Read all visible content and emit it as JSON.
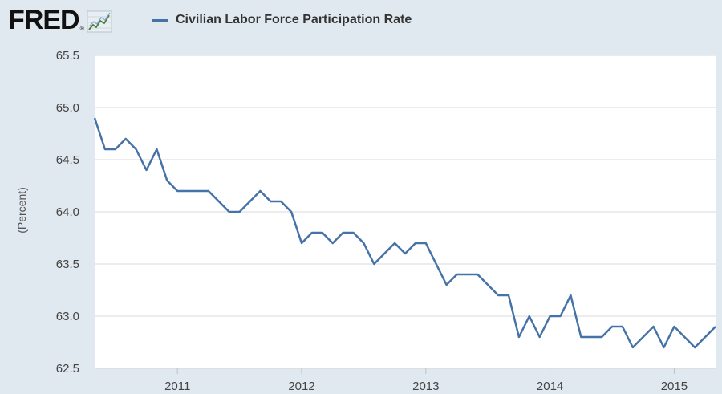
{
  "brand": {
    "name": "FRED",
    "registered": "®"
  },
  "chart_data": {
    "type": "line",
    "title": "",
    "xlabel": "",
    "ylabel": "(Percent)",
    "ylim": [
      62.5,
      65.5
    ],
    "yticks": [
      "62.5",
      "63.0",
      "63.5",
      "64.0",
      "64.5",
      "65.0",
      "65.5"
    ],
    "xticks": [
      "2011",
      "2012",
      "2013",
      "2014",
      "2015"
    ],
    "x_start": "2010-05",
    "x_end": "2015-05",
    "grid": true,
    "legend_position": "top",
    "series": [
      {
        "name": "Civilian Labor Force Participation Rate",
        "color": "#4572a7",
        "x": [
          "2010-05",
          "2010-06",
          "2010-07",
          "2010-08",
          "2010-09",
          "2010-10",
          "2010-11",
          "2010-12",
          "2011-01",
          "2011-02",
          "2011-03",
          "2011-04",
          "2011-05",
          "2011-06",
          "2011-07",
          "2011-08",
          "2011-09",
          "2011-10",
          "2011-11",
          "2011-12",
          "2012-01",
          "2012-02",
          "2012-03",
          "2012-04",
          "2012-05",
          "2012-06",
          "2012-07",
          "2012-08",
          "2012-09",
          "2012-10",
          "2012-11",
          "2012-12",
          "2013-01",
          "2013-02",
          "2013-03",
          "2013-04",
          "2013-05",
          "2013-06",
          "2013-07",
          "2013-08",
          "2013-09",
          "2013-10",
          "2013-11",
          "2013-12",
          "2014-01",
          "2014-02",
          "2014-03",
          "2014-04",
          "2014-05",
          "2014-06",
          "2014-07",
          "2014-08",
          "2014-09",
          "2014-10",
          "2014-11",
          "2014-12",
          "2015-01",
          "2015-02",
          "2015-03",
          "2015-04",
          "2015-05"
        ],
        "values": [
          64.9,
          64.6,
          64.6,
          64.7,
          64.6,
          64.4,
          64.6,
          64.3,
          64.2,
          64.2,
          64.2,
          64.2,
          64.1,
          64.0,
          64.0,
          64.1,
          64.2,
          64.1,
          64.1,
          64.0,
          63.7,
          63.8,
          63.8,
          63.7,
          63.8,
          63.8,
          63.7,
          63.5,
          63.6,
          63.7,
          63.6,
          63.7,
          63.7,
          63.5,
          63.3,
          63.4,
          63.4,
          63.4,
          63.3,
          63.2,
          63.2,
          62.8,
          63.0,
          62.8,
          63.0,
          63.0,
          63.2,
          62.8,
          62.8,
          62.8,
          62.9,
          62.9,
          62.7,
          62.8,
          62.9,
          62.7,
          62.9,
          62.8,
          62.7,
          62.8,
          62.9
        ]
      }
    ]
  }
}
